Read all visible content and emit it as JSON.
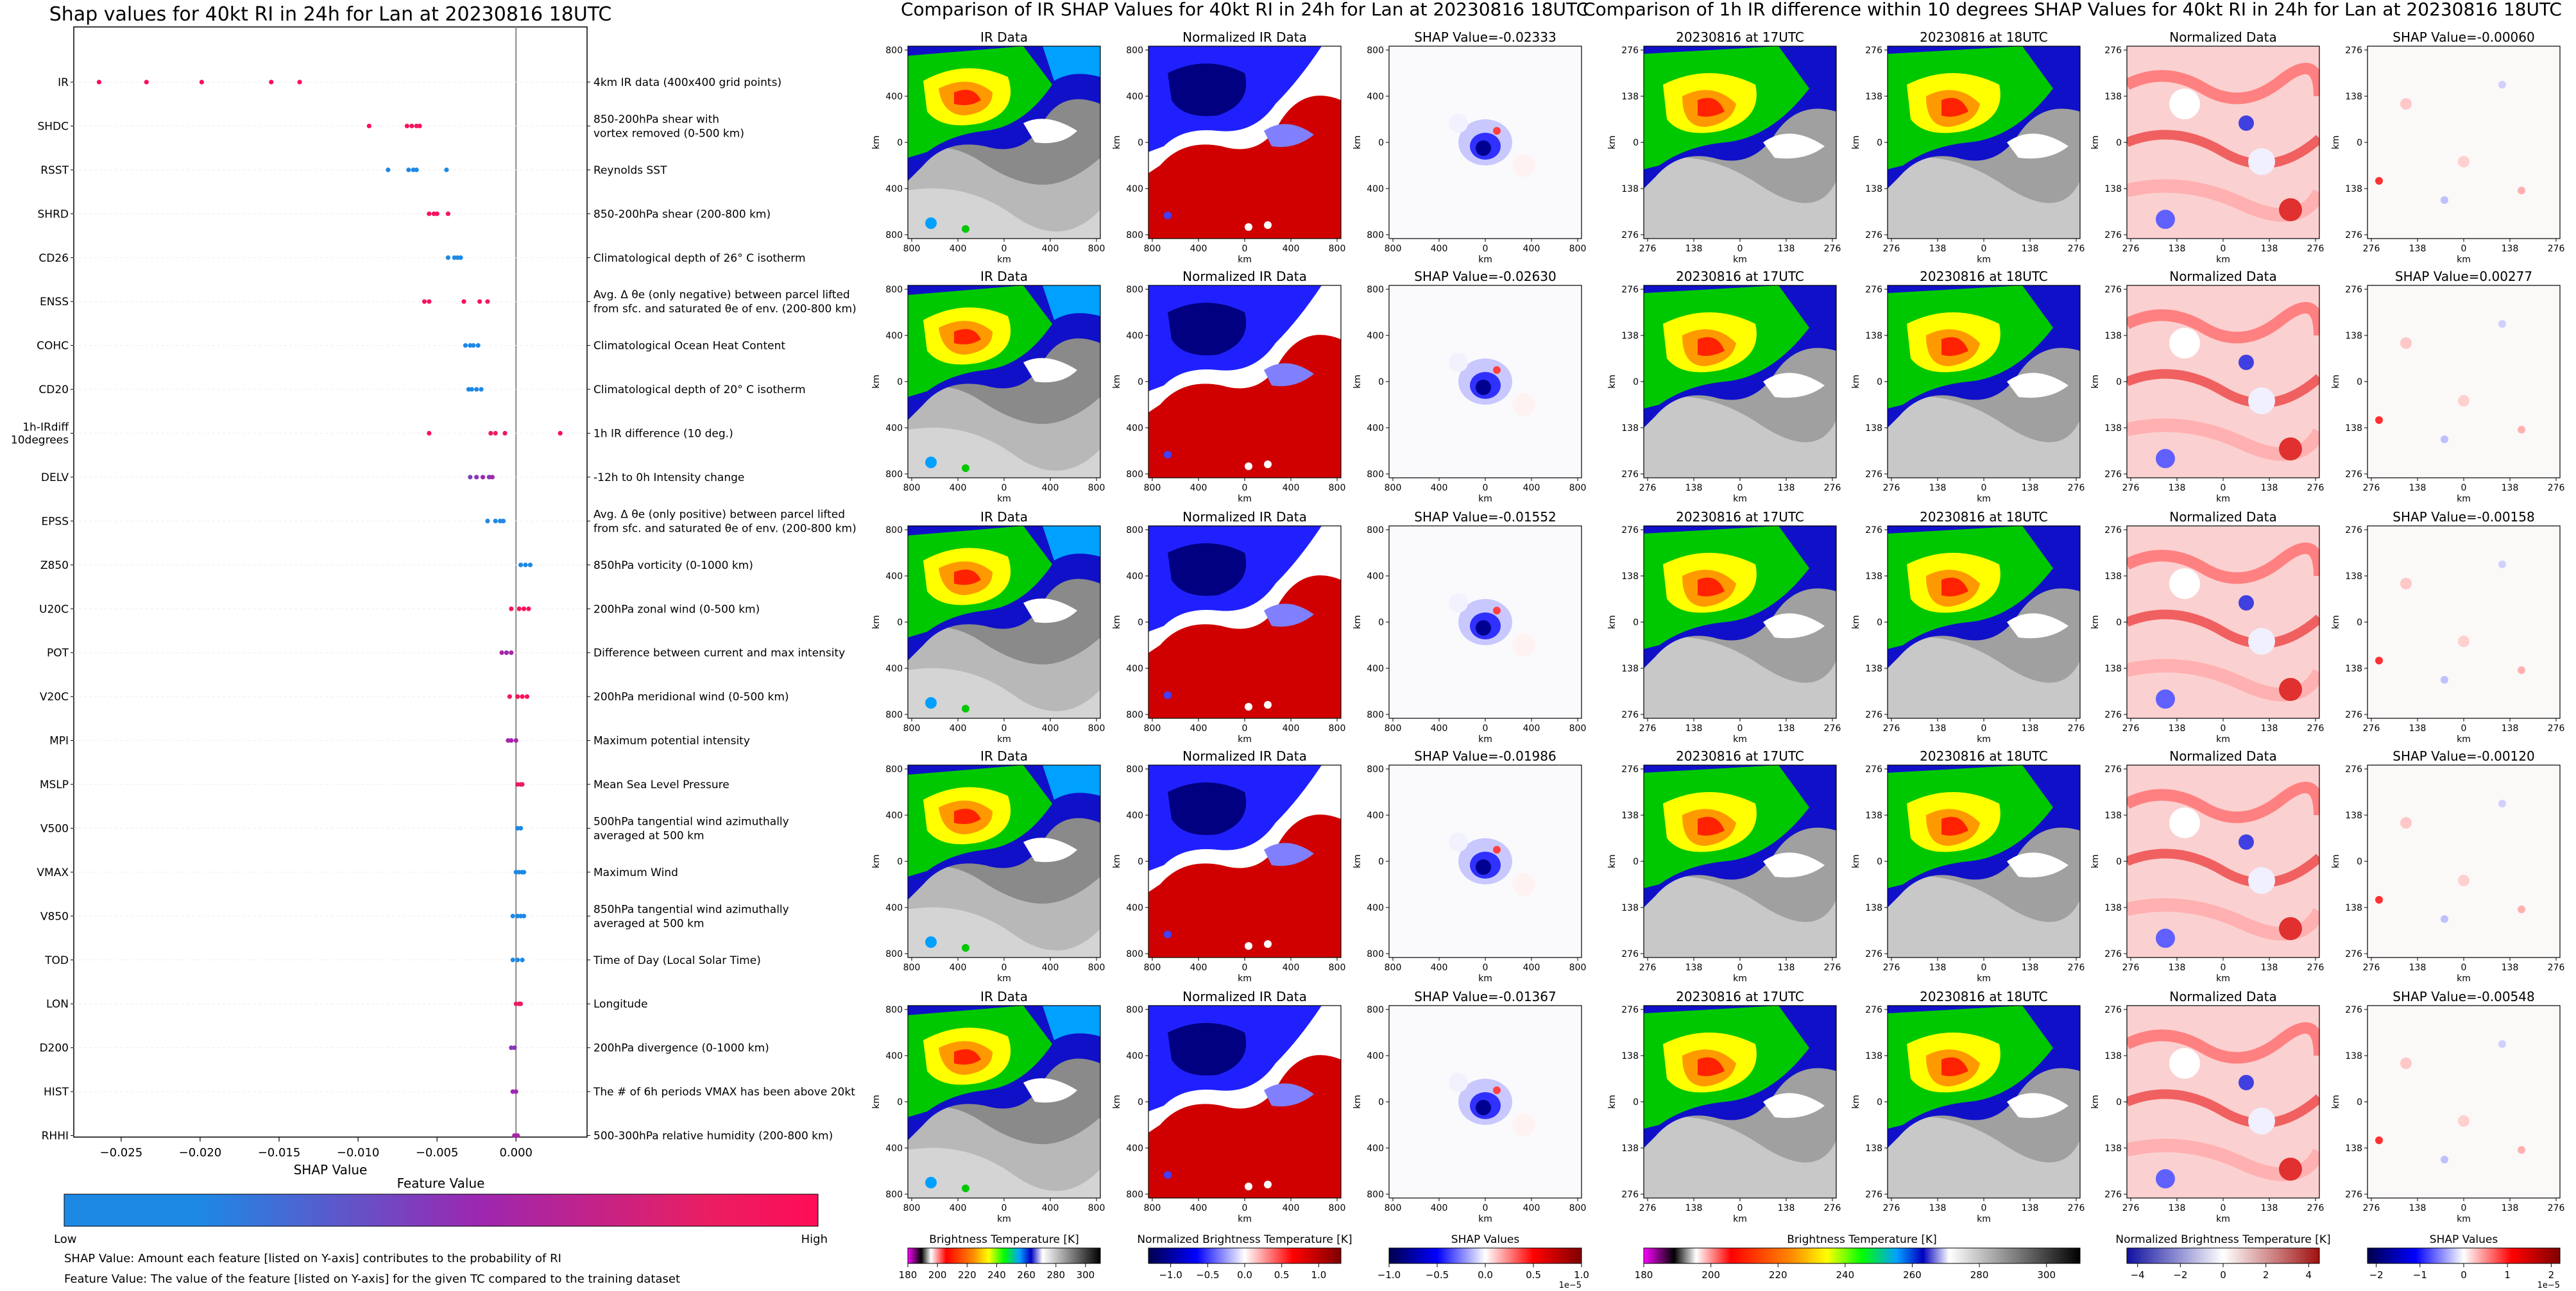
{
  "chart_data": [
    {
      "type": "scatter",
      "title": "Shap values for 40kt RI in 24h for Lan at 20230816 18UTC",
      "xlabel": "SHAP Value",
      "xlim": [
        -0.028,
        0.0045
      ],
      "xticks": [
        -0.025,
        -0.02,
        -0.015,
        -0.01,
        -0.005,
        0.0
      ],
      "xtick_labels": [
        "−0.025",
        "−0.020",
        "−0.015",
        "−0.010",
        "−0.005",
        "0.000"
      ],
      "colorbar": {
        "label": "Feature Value",
        "low": "Low",
        "high": "High",
        "low_color": "#1e88e5",
        "mid_color": "#9c27b0",
        "high_color": "#ff0d57"
      },
      "notes": [
        "SHAP Value: Amount each feature [listed on Y-axis] contributes to the probability of RI",
        "Feature Value: The value of the feature [listed on Y-axis] for the given TC compared to the training dataset"
      ],
      "features": [
        {
          "name": "IR",
          "desc": "4km IR data (400x400 grid points)",
          "points": [
            [
              -0.0264,
              1.0
            ],
            [
              -0.0234,
              1.0
            ],
            [
              -0.0199,
              1.0
            ],
            [
              -0.0155,
              1.0
            ],
            [
              -0.0137,
              1.0
            ]
          ]
        },
        {
          "name": "SHDC",
          "desc": "850-200hPa shear with\nvortex removed (0-500 km)",
          "points": [
            [
              -0.0093,
              1.0
            ],
            [
              -0.0069,
              0.95
            ],
            [
              -0.0066,
              0.95
            ],
            [
              -0.0063,
              0.9
            ],
            [
              -0.0061,
              0.95
            ]
          ]
        },
        {
          "name": "RSST",
          "desc": "Reynolds SST",
          "points": [
            [
              -0.0081,
              0.0
            ],
            [
              -0.0068,
              0.05
            ],
            [
              -0.0065,
              0.05
            ],
            [
              -0.0063,
              0.1
            ],
            [
              -0.0044,
              0.05
            ]
          ]
        },
        {
          "name": "SHRD",
          "desc": "850-200hPa shear (200-800 km)",
          "points": [
            [
              -0.0055,
              0.95
            ],
            [
              -0.0052,
              0.9
            ],
            [
              -0.005,
              0.95
            ],
            [
              -0.0043,
              0.9
            ]
          ]
        },
        {
          "name": "CD26",
          "desc": "Climatological depth of 26° C isotherm",
          "points": [
            [
              -0.0043,
              0.05
            ],
            [
              -0.0039,
              0.0
            ],
            [
              -0.0037,
              0.05
            ],
            [
              -0.0035,
              0.0
            ]
          ]
        },
        {
          "name": "ENSS",
          "desc": "Avg. Δ θe (only negative) between parcel lifted\nfrom sfc. and saturated θe of env. (200-800 km)",
          "points": [
            [
              -0.0058,
              0.95
            ],
            [
              -0.0055,
              0.9
            ],
            [
              -0.0033,
              1.0
            ],
            [
              -0.0023,
              0.95
            ],
            [
              -0.0018,
              0.9
            ]
          ]
        },
        {
          "name": "COHC",
          "desc": "Climatological Ocean Heat Content",
          "points": [
            [
              -0.0032,
              0.05
            ],
            [
              -0.0029,
              0.0
            ],
            [
              -0.0027,
              0.05
            ],
            [
              -0.0024,
              0.0
            ]
          ]
        },
        {
          "name": "CD20",
          "desc": "Climatological depth of 20° C isotherm",
          "points": [
            [
              -0.003,
              0.05
            ],
            [
              -0.0028,
              0.0
            ],
            [
              -0.0025,
              0.05
            ],
            [
              -0.0022,
              0.0
            ]
          ]
        },
        {
          "name": "1h-IRdiff\n10degrees",
          "desc": "1h IR difference (10 deg.)",
          "points": [
            [
              -0.0055,
              0.95
            ],
            [
              -0.0016,
              0.9
            ],
            [
              -0.0013,
              0.85
            ],
            [
              -0.0007,
              0.95
            ],
            [
              0.0028,
              1.0
            ]
          ]
        },
        {
          "name": "DELV",
          "desc": "-12h to 0h Intensity change",
          "points": [
            [
              -0.0029,
              0.45
            ],
            [
              -0.0025,
              0.5
            ],
            [
              -0.0021,
              0.55
            ],
            [
              -0.0017,
              0.5
            ],
            [
              -0.0015,
              0.55
            ]
          ]
        },
        {
          "name": "EPSS",
          "desc": "Avg. Δ θe (only positive) between parcel lifted\nfrom sfc. and saturated θe of env. (200-800 km)",
          "points": [
            [
              -0.0018,
              0.05
            ],
            [
              -0.0013,
              0.0
            ],
            [
              -0.001,
              0.05
            ],
            [
              -0.0008,
              0.0
            ]
          ]
        },
        {
          "name": "Z850",
          "desc": "850hPa vorticity (0-1000 km)",
          "points": [
            [
              0.0003,
              0.05
            ],
            [
              0.0006,
              0.0
            ],
            [
              0.0009,
              0.05
            ]
          ]
        },
        {
          "name": "U20C",
          "desc": "200hPa zonal wind (0-500 km)",
          "points": [
            [
              -0.0003,
              0.9
            ],
            [
              0.0002,
              0.95
            ],
            [
              0.0005,
              1.0
            ],
            [
              0.0008,
              0.95
            ]
          ]
        },
        {
          "name": "POT",
          "desc": "Difference between current and max intensity",
          "points": [
            [
              -0.0009,
              0.6
            ],
            [
              -0.0006,
              0.55
            ],
            [
              -0.0003,
              0.6
            ]
          ]
        },
        {
          "name": "V20C",
          "desc": "200hPa meridional wind (0-500 km)",
          "points": [
            [
              -0.0004,
              0.9
            ],
            [
              0.0001,
              0.95
            ],
            [
              0.0004,
              1.0
            ],
            [
              0.0007,
              0.95
            ]
          ]
        },
        {
          "name": "MPI",
          "desc": "Maximum potential intensity",
          "points": [
            [
              -0.0005,
              0.6
            ],
            [
              -0.0003,
              0.55
            ],
            [
              0.0,
              0.6
            ]
          ]
        },
        {
          "name": "MSLP",
          "desc": "Mean Sea Level Pressure",
          "points": [
            [
              0.0001,
              0.85
            ],
            [
              0.0003,
              0.9
            ],
            [
              0.0004,
              0.85
            ]
          ]
        },
        {
          "name": "V500",
          "desc": "500hPa tangential wind azimuthally\naveraged at 500 km",
          "points": [
            [
              0.0001,
              0.1
            ],
            [
              0.0003,
              0.15
            ]
          ]
        },
        {
          "name": "VMAX",
          "desc": "Maximum Wind",
          "points": [
            [
              0.0,
              0.05
            ],
            [
              0.0002,
              0.05
            ],
            [
              0.0004,
              0.05
            ],
            [
              0.0005,
              0.1
            ]
          ]
        },
        {
          "name": "V850",
          "desc": "850hPa tangential wind azimuthally\naveraged at 500 km",
          "points": [
            [
              -0.0002,
              0.1
            ],
            [
              0.0001,
              0.05
            ],
            [
              0.0003,
              0.1
            ],
            [
              0.0005,
              0.05
            ]
          ]
        },
        {
          "name": "TOD",
          "desc": "Time of Day (Local Solar Time)",
          "points": [
            [
              -0.0002,
              0.05
            ],
            [
              0.0001,
              0.0
            ],
            [
              0.0004,
              0.05
            ]
          ]
        },
        {
          "name": "LON",
          "desc": "Longitude",
          "points": [
            [
              0.0,
              0.85
            ],
            [
              0.0002,
              0.9
            ],
            [
              0.0003,
              0.85
            ]
          ]
        },
        {
          "name": "D200",
          "desc": "200hPa divergence (0-1000 km)",
          "points": [
            [
              -0.0003,
              0.5
            ],
            [
              -0.0001,
              0.5
            ]
          ]
        },
        {
          "name": "HIST",
          "desc": "The # of 6h periods VMAX has been above 20kt",
          "points": [
            [
              -0.0002,
              0.55
            ],
            [
              0.0,
              0.55
            ]
          ]
        },
        {
          "name": "RHHI",
          "desc": "500-300hPa relative humidity (200-800 km)",
          "points": [
            [
              -0.0001,
              0.6
            ],
            [
              0.0001,
              0.6
            ]
          ]
        }
      ]
    },
    {
      "type": "heatmap",
      "title": "Comparison of IR SHAP Values for 40kt RI in 24h for Lan at 20230816 18UTC",
      "columns": [
        "IR Data",
        "Normalized IR Data",
        "SHAP Value"
      ],
      "xlabel": "km",
      "ylabel": "km",
      "xticks": [
        "800",
        "400",
        "0",
        "400",
        "800"
      ],
      "yticks": [
        "800",
        "400",
        "0",
        "400",
        "800"
      ],
      "shap_values": [
        "-0.02333",
        "-0.02630",
        "-0.01552",
        "-0.01986",
        "-0.01367"
      ],
      "shap_prefix": "SHAP Value=",
      "colorbars": [
        {
          "label": "Brightness Temperature [K]",
          "ticks": [
            "180",
            "200",
            "220",
            "240",
            "260",
            "280",
            "300"
          ],
          "range": [
            180,
            310
          ]
        },
        {
          "label": "Normalized Brightness Temperature [K]",
          "ticks": [
            "−1.0",
            "−0.5",
            "0.0",
            "0.5",
            "1.0"
          ],
          "range": [
            -1.3,
            1.3
          ]
        },
        {
          "label": "SHAP Values",
          "ticks": [
            "−1.0",
            "−0.5",
            "0.0",
            "0.5",
            "1.0"
          ],
          "range": [
            -1.0,
            1.0
          ],
          "offset": "1e−5"
        }
      ]
    },
    {
      "type": "heatmap",
      "title": "Comparison of 1h IR difference within 10 degrees SHAP Values for 40kt RI in 24h for Lan at 20230816 18UTC",
      "columns": [
        "20230816 at 17UTC",
        "20230816 at 18UTC",
        "Normalized Data",
        "SHAP Value"
      ],
      "xlabel": "km",
      "ylabel": "km",
      "xticks": [
        "276",
        "138",
        "0",
        "138",
        "276"
      ],
      "yticks": [
        "276",
        "138",
        "0",
        "138",
        "276"
      ],
      "shap_values": [
        "-0.00060",
        "0.00277",
        "-0.00158",
        "-0.00120",
        "-0.00548"
      ],
      "shap_prefix": "SHAP Value=",
      "colorbars": [
        {
          "label": "Brightness Temperature [K]",
          "ticks": [
            "180",
            "200",
            "220",
            "240",
            "260",
            "280",
            "300"
          ],
          "range": [
            180,
            310
          ]
        },
        {
          "label": "Normalized Brightness Temperature [K]",
          "ticks": [
            "−4",
            "−2",
            "0",
            "2",
            "4"
          ],
          "range": [
            -4.5,
            4.5
          ]
        },
        {
          "label": "SHAP Values",
          "ticks": [
            "−2",
            "−1",
            "0",
            "1",
            "2"
          ],
          "range": [
            -2.2,
            2.2
          ],
          "offset": "1e−5"
        }
      ]
    }
  ]
}
